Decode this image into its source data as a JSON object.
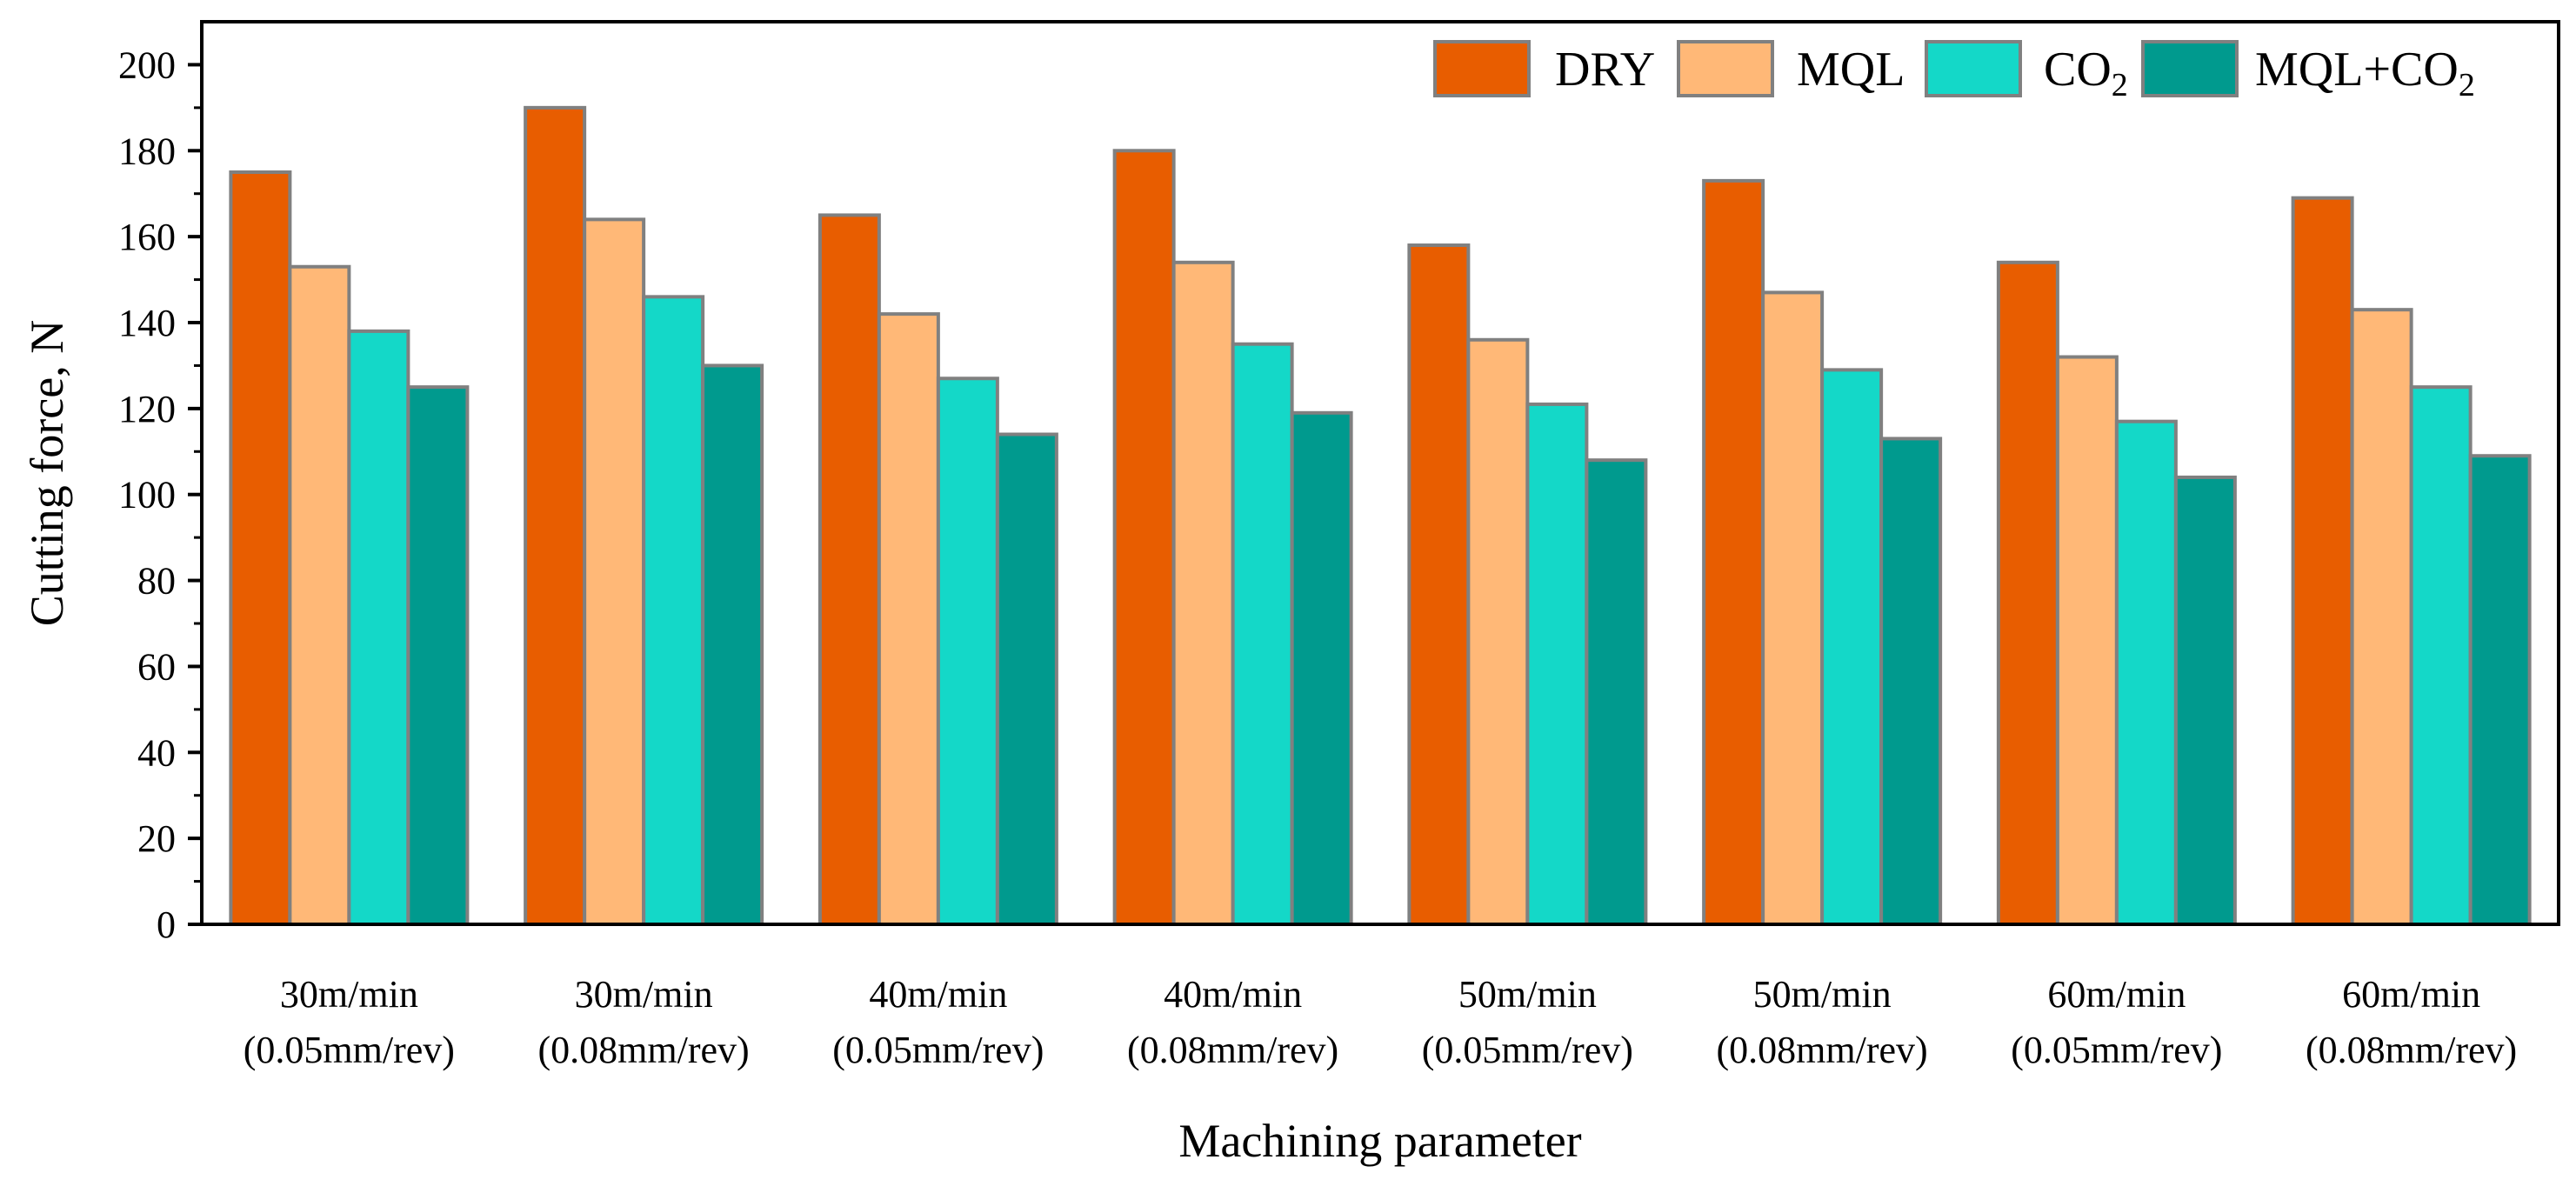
{
  "chart_data": {
    "type": "bar",
    "title": "",
    "xlabel": "Machining parameter",
    "ylabel": "Cutting force, N",
    "ylim": [
      0,
      210
    ],
    "yticks": [
      0,
      20,
      40,
      60,
      80,
      100,
      120,
      140,
      160,
      180,
      200
    ],
    "ytick_labels": [
      "0",
      "20",
      "40",
      "60",
      "80",
      "100",
      "120",
      "140",
      "160",
      "180",
      "200"
    ],
    "grid": false,
    "legend_position": "top-right",
    "categories": [
      {
        "line1": "30m/min",
        "line2": "(0.05mm/rev)"
      },
      {
        "line1": "30m/min",
        "line2": "(0.08mm/rev)"
      },
      {
        "line1": "40m/min",
        "line2": "(0.05mm/rev)"
      },
      {
        "line1": "40m/min",
        "line2": "(0.08mm/rev)"
      },
      {
        "line1": "50m/min",
        "line2": "(0.05mm/rev)"
      },
      {
        "line1": "50m/min",
        "line2": "(0.08mm/rev)"
      },
      {
        "line1": "60m/min",
        "line2": "(0.05mm/rev)"
      },
      {
        "line1": "60m/min",
        "line2": "(0.08mm/rev)"
      }
    ],
    "series": [
      {
        "name": "DRY",
        "color": "#e85d00",
        "values": [
          175,
          190,
          165,
          180,
          158,
          173,
          154,
          169
        ]
      },
      {
        "name": "MQL",
        "color": "#ffb877",
        "values": [
          153,
          164,
          142,
          154,
          136,
          147,
          132,
          143
        ]
      },
      {
        "name": "CO2",
        "label_main": "CO",
        "label_sub": "2",
        "color": "#14d8c8",
        "values": [
          138,
          146,
          127,
          135,
          121,
          129,
          117,
          125
        ]
      },
      {
        "name": "MQL+CO2",
        "label_main": "MQL+CO",
        "label_sub": "2",
        "color": "#009a8e",
        "values": [
          125,
          130,
          114,
          119,
          108,
          113,
          104,
          109
        ]
      }
    ],
    "bar_edge_color": "#808080"
  }
}
